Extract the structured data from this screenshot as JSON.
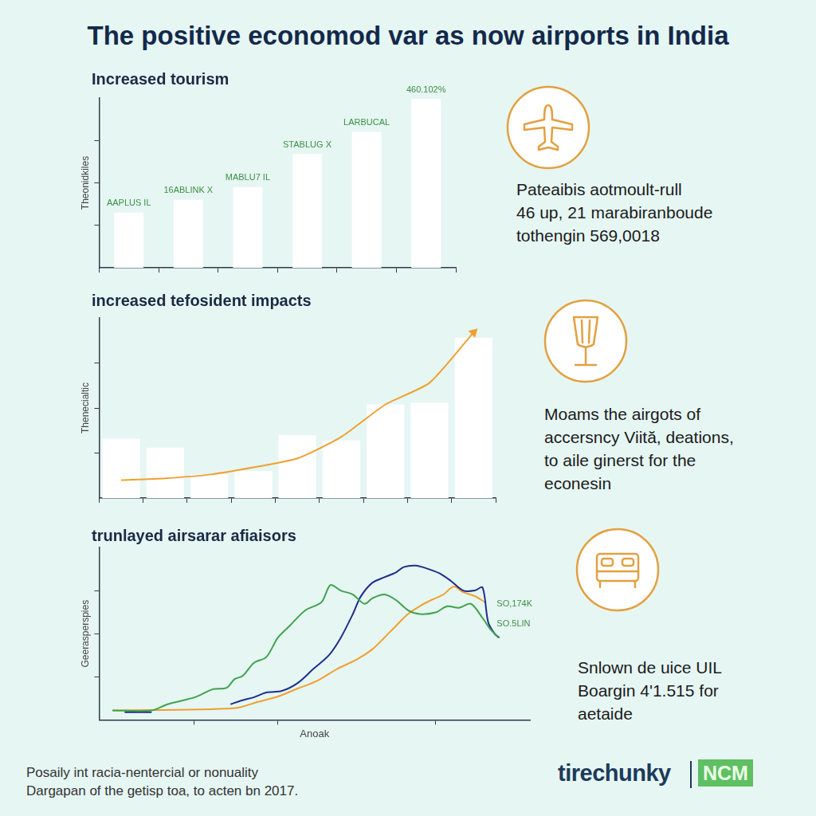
{
  "title": "The positive economod var as now airports in India",
  "footer": [
    "Posaily int racia-nentercial or nonuality",
    "Dargapan of the getisp toa, to acten bn 2017."
  ],
  "logo": {
    "text": "tirechunky",
    "badge": "NCM"
  },
  "chart_data": [
    {
      "type": "bar",
      "title": "Increased tourism",
      "y_label": "Theonidkiles",
      "categories": [
        null,
        null,
        null,
        null,
        null,
        null
      ],
      "values": [
        32.5,
        40,
        47.5,
        67,
        80,
        99.5
      ],
      "color": "#ffffff",
      "annotations": [
        "AAPLUS IL",
        "16ABLINK X",
        "MABLU7 IL",
        "STABLUG X",
        "LARBUCAL",
        "460.102%"
      ],
      "ylim": [
        0,
        100
      ],
      "yticks": [
        25,
        50,
        75
      ],
      "grid": false,
      "tick_labels": false,
      "caption": [
        "Pateaibis aotmoult-rull",
        "46 up, 21 marabiranboude",
        "tothengin 569,0018"
      ]
    },
    {
      "type": "bar",
      "title": "increased tefosident impacts",
      "y_label": "Thenecialtic",
      "categories": [
        null,
        null,
        null,
        null,
        null,
        null,
        null,
        null,
        null
      ],
      "series": [
        {
          "type": "bar",
          "color": "#ffffff",
          "values": [
            33,
            28,
            13,
            15,
            35,
            32,
            52,
            53,
            89
          ]
        },
        {
          "type": "line",
          "color": "#f0a030",
          "marker": "arrow",
          "values": [
            10,
            11,
            13,
            17,
            22,
            34,
            52,
            64,
            92
          ]
        }
      ],
      "ylim": [
        0,
        100
      ],
      "yticks": [
        25,
        50,
        75
      ],
      "grid": false,
      "tick_labels": false,
      "caption": [
        "Moams the airgots of",
        "accersncy Viită, deations,",
        "to aile ginerst for the",
        "econesin"
      ]
    },
    {
      "type": "line",
      "title": "trunlayed airsarar afiaisors",
      "x_label": "Anoak",
      "y_label": "Geerasperspies",
      "series": [
        {
          "color": "#3fa34d",
          "x": [
            3.1,
            12.2,
            15.9,
            22.3,
            26.3,
            29.6,
            31.4,
            33.3,
            36.0,
            38.8,
            41.5,
            44.2,
            47.9,
            51.6,
            53.7,
            56.1,
            58.9,
            61.6,
            63.4,
            66.2,
            68.9,
            71.7,
            74.4,
            78.1,
            80.8,
            83.5,
            86.3,
            89.0,
            90.9,
            92.7
          ],
          "values": [
            5.5,
            5.5,
            9.1,
            13.2,
            17.7,
            18.6,
            23.6,
            25.5,
            33.2,
            36.4,
            47.7,
            54.5,
            63.6,
            68.2,
            78.2,
            75.0,
            72.7,
            67.3,
            70.5,
            72.7,
            69.5,
            63.6,
            61.4,
            62.3,
            65.9,
            65.0,
            67.3,
            59.1,
            52.3,
            47.7
          ]
        },
        {
          "color": "#1f2e8a",
          "x": [
            5.9,
            12.2,
            20,
            30.5,
            33.3,
            36.0,
            38.8,
            42.4,
            46.1,
            49.7,
            53.4,
            56.1,
            58.9,
            60.7,
            63.4,
            66.2,
            68.9,
            70.7,
            73.5,
            76.2,
            79.0,
            81.7,
            84.5,
            87.2,
            89.0,
            90.3,
            91.8,
            92.9
          ],
          "values": [
            4.5,
            4.5,
            null,
            9.1,
            11.4,
            13.2,
            15.9,
            16.8,
            21.4,
            29.5,
            37.7,
            47.7,
            61.4,
            71.4,
            79.5,
            82.7,
            85.5,
            88.6,
            89.5,
            87.7,
            85.0,
            80.5,
            75.0,
            75.0,
            76.8,
            56.8,
            50.0,
            47.7
          ]
        },
        {
          "color": "#f0a030",
          "x": [
            3.1,
            31.4,
            36.9,
            41.5,
            46.1,
            50.6,
            55.2,
            59.8,
            63.4,
            66.2,
            68.9,
            71.7,
            74.4,
            77.1,
            79.9,
            82.3,
            84.5,
            87.2,
            89.6
          ],
          "values": [
            5.5,
            6.8,
            10.5,
            13.6,
            18.2,
            22.7,
            29.5,
            35.0,
            40.9,
            47.7,
            54.5,
            61.4,
            65.9,
            69.5,
            72.7,
            77.3,
            74.1,
            71.8,
            68.2
          ]
        }
      ],
      "annotations": [
        {
          "text": "SO,174K",
          "x": 92.3,
          "y": 67.3
        },
        {
          "text": "SO.5LIN",
          "x": 92.3,
          "y": 55.5
        }
      ],
      "xlim": [
        0,
        100
      ],
      "xticks": [
        22,
        41.5,
        78
      ],
      "ylim": [
        0,
        100
      ],
      "yticks": [
        25,
        50,
        75
      ],
      "grid": false,
      "tick_labels": false,
      "caption": [
        "Snlown de uice UIL",
        "Boargin 4'1.515 for",
        "aetaide"
      ]
    }
  ]
}
